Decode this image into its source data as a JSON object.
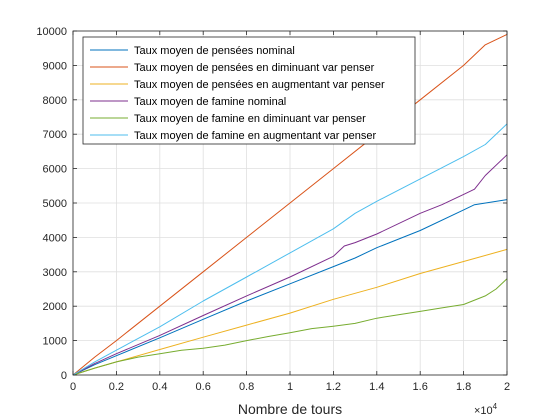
{
  "chart_data": {
    "type": "line",
    "xlabel": "Nombre de tours",
    "ylabel": "",
    "x_multiplier_label": "×10",
    "x_multiplier_exponent": "4",
    "xlim": [
      0,
      20000
    ],
    "ylim": [
      0,
      10000
    ],
    "x_tick_labels": [
      "0",
      "0.2",
      "0.4",
      "0.6",
      "0.8",
      "1",
      "1.2",
      "1.4",
      "1.6",
      "1.8",
      "2"
    ],
    "x_tick_values": [
      0,
      2000,
      4000,
      6000,
      8000,
      10000,
      12000,
      14000,
      16000,
      18000,
      20000
    ],
    "y_tick_labels": [
      "0",
      "1000",
      "2000",
      "3000",
      "4000",
      "5000",
      "6000",
      "7000",
      "8000",
      "9000",
      "10000"
    ],
    "y_tick_values": [
      0,
      1000,
      2000,
      3000,
      4000,
      5000,
      6000,
      7000,
      8000,
      9000,
      10000
    ],
    "grid": true,
    "legend_position": "top-left",
    "series": [
      {
        "name": "Taux moyen de pensées nominal",
        "color": "#0072bd",
        "x": [
          0,
          1000,
          2000,
          4000,
          6000,
          8000,
          10000,
          12000,
          13000,
          14000,
          16000,
          18000,
          18500,
          20000
        ],
        "y": [
          0,
          300,
          560,
          1080,
          1620,
          2150,
          2650,
          3150,
          3400,
          3700,
          4200,
          4800,
          4950,
          5100
        ]
      },
      {
        "name": "Taux moyen de pensées en diminuant var penser",
        "color": "#d95319",
        "x": [
          0,
          1000,
          2000,
          4000,
          6000,
          8000,
          10000,
          12000,
          14000,
          16000,
          18000,
          19000,
          20000
        ],
        "y": [
          0,
          520,
          1000,
          2000,
          3000,
          4000,
          5000,
          6000,
          7000,
          8000,
          9000,
          9600,
          9900
        ]
      },
      {
        "name": "Taux moyen de pensées en augmentant var penser",
        "color": "#edb120",
        "x": [
          0,
          1000,
          2000,
          4000,
          6000,
          8000,
          10000,
          12000,
          14000,
          16000,
          18000,
          20000
        ],
        "y": [
          0,
          200,
          380,
          740,
          1100,
          1450,
          1800,
          2200,
          2550,
          2950,
          3300,
          3650
        ]
      },
      {
        "name": "Taux moyen de famine nominal",
        "color": "#7e2f8e",
        "x": [
          0,
          1000,
          2000,
          4000,
          6000,
          8000,
          10000,
          12000,
          12500,
          13000,
          14000,
          16000,
          17000,
          18000,
          18500,
          19000,
          20000
        ],
        "y": [
          0,
          330,
          620,
          1150,
          1730,
          2300,
          2850,
          3450,
          3750,
          3850,
          4100,
          4700,
          4950,
          5250,
          5400,
          5800,
          6400
        ]
      },
      {
        "name": "Taux moyen de famine en diminuant var penser",
        "color": "#77ac30",
        "x": [
          0,
          1000,
          2000,
          3000,
          4000,
          5000,
          6000,
          7000,
          8000,
          9000,
          10000,
          11000,
          12000,
          13000,
          14000,
          15000,
          16000,
          17000,
          18000,
          19000,
          19500,
          20000
        ],
        "y": [
          0,
          200,
          380,
          520,
          620,
          720,
          780,
          870,
          1000,
          1120,
          1230,
          1350,
          1420,
          1500,
          1650,
          1750,
          1850,
          1950,
          2050,
          2300,
          2500,
          2800
        ]
      },
      {
        "name": "Taux moyen de famine en augmentant var penser",
        "color": "#4dbeee",
        "x": [
          0,
          1000,
          2000,
          4000,
          6000,
          8000,
          10000,
          12000,
          13000,
          14000,
          16000,
          18000,
          19000,
          20000
        ],
        "y": [
          0,
          380,
          720,
          1400,
          2150,
          2850,
          3550,
          4250,
          4700,
          5050,
          5700,
          6350,
          6700,
          7300
        ]
      }
    ]
  }
}
